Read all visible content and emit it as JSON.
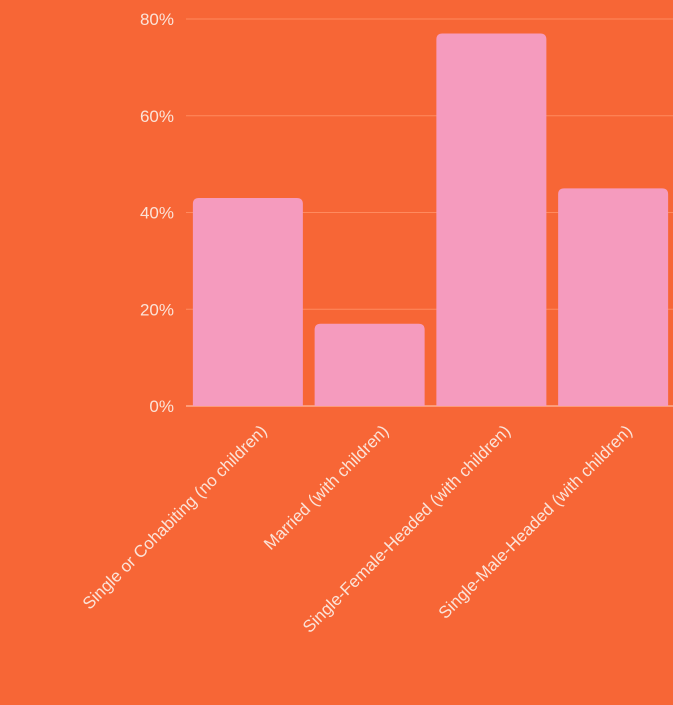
{
  "colors": {
    "background": "#F76636",
    "bar": "#F59BBE",
    "text": "#FBE3D8",
    "grid": "#FF8A5E"
  },
  "chart_data": {
    "type": "bar",
    "categories": [
      "Single or Cohabiting (no children)",
      "Married (with children)",
      "Single-Female-Headed (with children)",
      "Single-Male-Headed (with children)"
    ],
    "values": [
      43,
      17,
      77,
      45
    ],
    "ylim": [
      0,
      80
    ],
    "yticks": [
      0,
      20,
      40,
      60,
      80
    ],
    "ytick_labels": [
      "0%",
      "20%",
      "40%",
      "60%",
      "80%"
    ],
    "grid": true,
    "legend": "none"
  }
}
